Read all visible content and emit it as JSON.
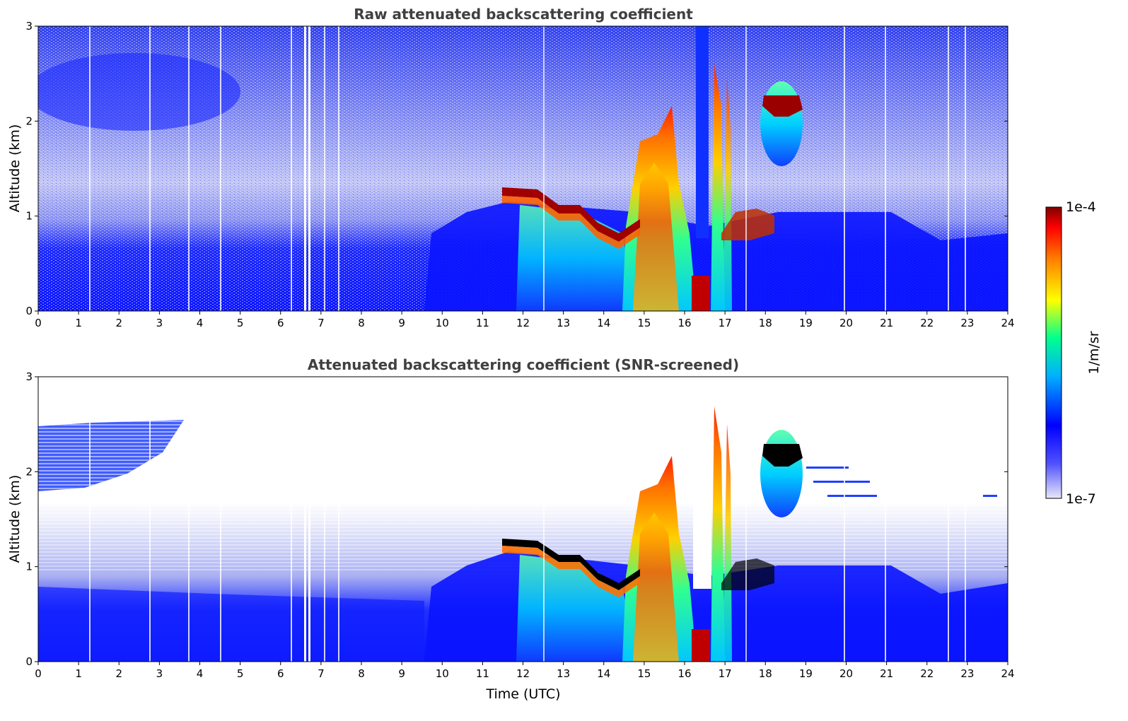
{
  "chart_data": [
    {
      "type": "heatmap",
      "title": "Raw attenuated backscattering coefficient",
      "xlabel": "",
      "ylabel": "Altitude (km)",
      "xlim": [
        0,
        24
      ],
      "ylim": [
        0,
        3
      ],
      "xticks": [
        "0",
        "1",
        "2",
        "3",
        "4",
        "5",
        "6",
        "7",
        "8",
        "9",
        "10",
        "11",
        "12",
        "13",
        "14",
        "15",
        "16",
        "17",
        "18",
        "19",
        "20",
        "21",
        "22",
        "23",
        "24"
      ],
      "yticks": [
        "0",
        "1",
        "2",
        "3"
      ],
      "features": [
        {
          "name": "cloud layer",
          "time_start": 11.5,
          "time_end": 14.8,
          "altitude_top_km": 1.3,
          "altitude_bottom_km": 0.8,
          "level": "high"
        },
        {
          "name": "convective column",
          "time_start": 14.8,
          "time_end": 16.0,
          "altitude_top_km": 1.9,
          "level": "very high"
        },
        {
          "name": "surface maximum",
          "time_start": 16.0,
          "time_end": 16.5,
          "altitude_top_km": 0.4,
          "level": "saturated"
        },
        {
          "name": "upper cloud",
          "time_start": 18.0,
          "time_end": 18.9,
          "altitude_top_km": 2.3,
          "altitude_bottom_km": 1.5,
          "level": "high"
        }
      ]
    },
    {
      "type": "heatmap",
      "title": "Attenuated backscattering coefficient (SNR-screened)",
      "xlabel": "Time (UTC)",
      "ylabel": "Altitude (km)",
      "xlim": [
        0,
        24
      ],
      "ylim": [
        0,
        3
      ],
      "xticks": [
        "0",
        "1",
        "2",
        "3",
        "4",
        "5",
        "6",
        "7",
        "8",
        "9",
        "10",
        "11",
        "12",
        "13",
        "14",
        "15",
        "16",
        "17",
        "18",
        "19",
        "20",
        "21",
        "22",
        "23",
        "24"
      ],
      "yticks": [
        "0",
        "1",
        "2",
        "3"
      ]
    }
  ],
  "colorbar": {
    "label": "1/m/sr",
    "max_label": "1e-4",
    "min_label": "1e-7",
    "colormap": [
      "#e8e8f8",
      "#0000ff",
      "#00c8ff",
      "#00ff80",
      "#ffff00",
      "#ff8000",
      "#ff0000",
      "#800000"
    ]
  }
}
